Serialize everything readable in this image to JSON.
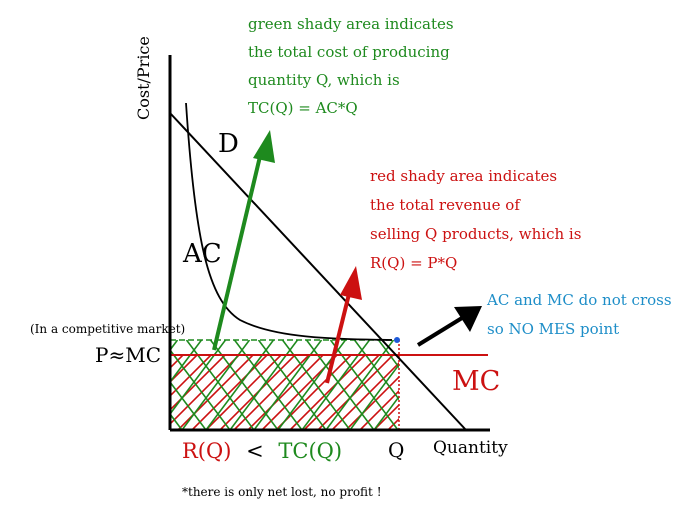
{
  "axes": {
    "y_label": "Cost/Price",
    "x_label": "Quantity",
    "q_tick": "Q",
    "p_tick": "P≈MC",
    "market_note": "(In a competitive market)"
  },
  "curves": {
    "demand": "D",
    "average_cost": "AC",
    "marginal_cost": "MC"
  },
  "annotations": {
    "green": [
      "green shady area indicates",
      "the total cost of producing",
      "quantity Q, which is",
      "TC(Q) = AC*Q"
    ],
    "red": [
      "red shady area indicates",
      "the total revenue of",
      "selling Q products, which is",
      "R(Q) = P*Q"
    ],
    "blue": [
      "AC and MC do not cross",
      "so NO MES point"
    ]
  },
  "comparison": {
    "left": "R(Q)",
    "operator": "<",
    "right": "TC(Q)"
  },
  "footnote": "*there is only net lost, no profit !",
  "colors": {
    "green": "#1e8a1e",
    "red": "#cc1111",
    "blue": "#1e8ec8",
    "black": "#000000"
  }
}
